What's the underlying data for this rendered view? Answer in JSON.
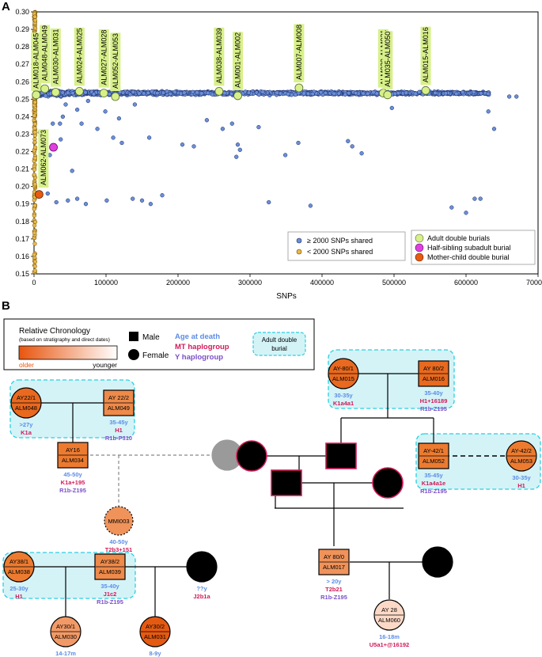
{
  "panel_a": {
    "label": "A",
    "chart_data": {
      "type": "scatter",
      "xlabel": "SNPs",
      "ylabel": "",
      "xlim": [
        0,
        700000
      ],
      "ylim": [
        0.15,
        0.3
      ],
      "x_ticks": [
        "0",
        "100000",
        "200000",
        "300000",
        "400000",
        "500000",
        "600000",
        "700000"
      ],
      "x_tick_values": [
        0,
        100000,
        200000,
        300000,
        400000,
        500000,
        600000,
        700000
      ],
      "y_ticks": [
        "0.15",
        "0.16",
        "0.17",
        "0.18",
        "0.19",
        "0.20",
        "0.21",
        "0.22",
        "0.23",
        "0.24",
        "0.25",
        "0.26",
        "0.27",
        "0.28",
        "0.29",
        "0.30"
      ],
      "y_tick_values": [
        0.15,
        0.16,
        0.17,
        0.18,
        0.19,
        0.2,
        0.21,
        0.22,
        0.23,
        0.24,
        0.25,
        0.26,
        0.27,
        0.28,
        0.29,
        0.3
      ],
      "legend_left": [
        {
          "label": "≥  2000 SNPs shared",
          "color": "#6a8fd8"
        },
        {
          "label": "< 2000 SNPs shared",
          "color": "#e8b84a"
        }
      ],
      "legend_right": [
        {
          "label": "Adult double burials",
          "color": "#d8f08a"
        },
        {
          "label": "Half-sibling subadult burial",
          "color": "#e040e0"
        },
        {
          "label": "Mother-child double burial",
          "color": "#e85a10"
        }
      ],
      "highlights": [
        {
          "label": "ALM018-ALM045",
          "x": 3000,
          "y": 0.2525,
          "kind": "adult"
        },
        {
          "label": "ALM048-ALM049",
          "x": 15000,
          "y": 0.256,
          "kind": "adult"
        },
        {
          "label": "ALM030-ALM031",
          "x": 30000,
          "y": 0.254,
          "kind": "adult"
        },
        {
          "label": "ALM024-ALM025",
          "x": 63000,
          "y": 0.2545,
          "kind": "adult"
        },
        {
          "label": "ALM027-ALM028",
          "x": 97000,
          "y": 0.2535,
          "kind": "adult"
        },
        {
          "label": "ALM052-ALM053",
          "x": 113000,
          "y": 0.2515,
          "kind": "adult"
        },
        {
          "label": "ALM038-ALM039",
          "x": 257000,
          "y": 0.2545,
          "kind": "adult"
        },
        {
          "label": "ALM001-ALM002",
          "x": 283000,
          "y": 0.252,
          "kind": "adult"
        },
        {
          "label": "ALM007-ALM008",
          "x": 368000,
          "y": 0.2565,
          "kind": "adult"
        },
        {
          "label": "ALM020-ALM021",
          "x": 485000,
          "y": 0.2535,
          "kind": "adult"
        },
        {
          "label": "ALM035-ALM050",
          "x": 491000,
          "y": 0.2525,
          "kind": "adult"
        },
        {
          "label": "ALM015-ALM016",
          "x": 544000,
          "y": 0.255,
          "kind": "adult"
        },
        {
          "label": "ALM062-ALM073",
          "x": 27000,
          "y": 0.2225,
          "kind": "halfsib"
        },
        {
          "label": "",
          "x": 7000,
          "y": 0.1955,
          "kind": "motherchild"
        }
      ]
    }
  },
  "panel_b": {
    "label": "B",
    "legend": {
      "chronology_title": "Relative Chronology",
      "chronology_sub": "(based on stratigraphy and direct dates)",
      "older": "older",
      "younger": "younger",
      "male": "Male",
      "female": "Female",
      "age": "Age at death",
      "mt": "MT haplogroup",
      "y": "Y haplogroup",
      "burial": "Adult double burial"
    },
    "colors": {
      "age": "#5b8ce6",
      "mt": "#d11a5a",
      "y": "#7a4fc8",
      "burial_bg": "#d4f3f7",
      "burial_border": "#29cfe0"
    },
    "people": {
      "alm048": {
        "code": "AY22/1",
        "id": "ALM048",
        "age": ">27y",
        "mt": "K1a",
        "y": ""
      },
      "alm049": {
        "code": "AY 22/2",
        "id": "ALM049",
        "age": "35-45y",
        "mt": "H1",
        "y": "R1b-P310"
      },
      "alm034": {
        "code": "AY16",
        "id": "ALM034",
        "age": "45-50y",
        "mt": "K1a+195",
        "y": "R1b-Z195"
      },
      "mmi003": {
        "code": "",
        "id": "MMI003",
        "age": "40-50y",
        "mt": "T2b3+151",
        "y": ""
      },
      "alm038": {
        "code": "AY38/1",
        "id": "ALM038",
        "age": "25-30y",
        "mt": "H1",
        "y": ""
      },
      "alm039": {
        "code": "AY38/2",
        "id": "ALM039",
        "age": "35-40y",
        "mt": "J1c2",
        "y": "R1b-Z195"
      },
      "unk_f": {
        "code": "",
        "id": "",
        "age": "??y",
        "mt": "J2b1a",
        "y": ""
      },
      "alm030": {
        "code": "AY30/1",
        "id": "ALM030",
        "age": "14-17m",
        "mt": "H1",
        "y": ""
      },
      "alm031": {
        "code": "AY30/2",
        "id": "ALM031",
        "age": "8-9y",
        "mt": "J2b1a",
        "y": ""
      },
      "alm015": {
        "code": "AY-80/1",
        "id": "ALM015",
        "age": "30-35y",
        "mt": "K1a4a1",
        "y": ""
      },
      "alm016": {
        "code": "AY 80/2",
        "id": "ALM016",
        "age": "35-40y",
        "mt": "H1+16189",
        "y": "R1b-Z195"
      },
      "alm052": {
        "code": "AY-42/1",
        "id": "ALM052",
        "age": "35-45y",
        "mt": "K1a4a1e",
        "y": "R1b-Z195"
      },
      "alm053": {
        "code": "AY-42/2",
        "id": "ALM053",
        "age": "30-35y",
        "mt": "H1",
        "y": ""
      },
      "alm017": {
        "code": "AY 80/0",
        "id": "ALM017",
        "age": "> 20y",
        "mt": "T2b21",
        "y": "R1b-Z195"
      },
      "alm060": {
        "code": "AY 28",
        "id": "ALM060",
        "age": "16-18m",
        "mt": "U5a1+@16192",
        "y": ""
      }
    }
  }
}
